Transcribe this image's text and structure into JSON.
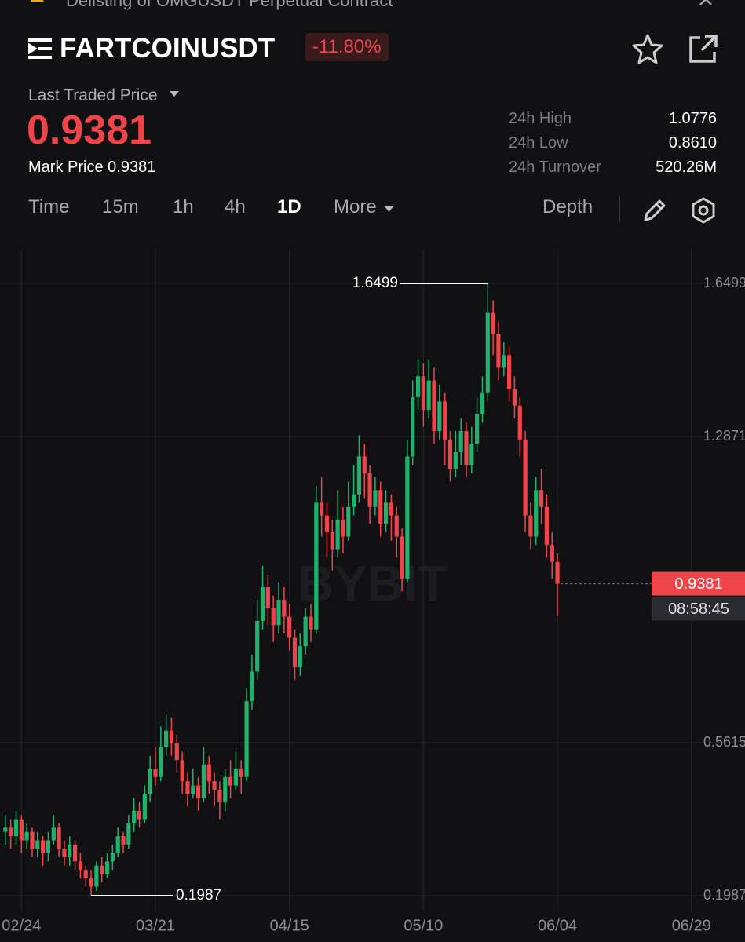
{
  "notice": "Delisting of OMGUSDT Perpetual Contract",
  "header": {
    "symbol": "FARTCOINUSDT",
    "change": "-11.80%",
    "price_label": "Last Traded Price",
    "last_price": "0.9381",
    "mark_price_label": "Mark Price",
    "mark_price": "0.9381",
    "stats": [
      {
        "label": "24h High",
        "value": "1.0776"
      },
      {
        "label": "24h Low",
        "value": "0.8610"
      },
      {
        "label": "24h Turnover",
        "value": "520.26M"
      }
    ]
  },
  "tabs": [
    "Time",
    "15m",
    "1h",
    "4h",
    "1D",
    "More",
    "Depth"
  ],
  "chart_data": {
    "type": "candlestick",
    "watermark": "BYBIT",
    "countdown": "08:58:45",
    "up_color": "#20b26c",
    "down_color": "#ef454a",
    "grid": true,
    "xlim": [
      "02/20",
      "07/09"
    ],
    "xticks": [
      "02/24",
      "03/21",
      "04/15",
      "05/10",
      "06/04",
      "06/29"
    ],
    "ylim": [
      0.1634,
      1.7299
    ],
    "yticks": [
      1.6499,
      1.2871,
      0.5615,
      0.1987
    ],
    "x": [
      "02/21",
      "02/22",
      "02/23",
      "02/24",
      "02/25",
      "02/26",
      "02/27",
      "02/28",
      "03/01",
      "03/02",
      "03/03",
      "03/04",
      "03/05",
      "03/06",
      "03/07",
      "03/08",
      "03/09",
      "03/10",
      "03/11",
      "03/12",
      "03/13",
      "03/14",
      "03/15",
      "03/16",
      "03/17",
      "03/18",
      "03/19",
      "03/20",
      "03/21",
      "03/22",
      "03/23",
      "03/24",
      "03/25",
      "03/26",
      "03/27",
      "03/28",
      "03/29",
      "03/30",
      "03/31",
      "04/01",
      "04/02",
      "04/03",
      "04/04",
      "04/05",
      "04/06",
      "04/07",
      "04/08",
      "04/09",
      "04/10",
      "04/11",
      "04/12",
      "04/13",
      "04/14",
      "04/15",
      "04/16",
      "04/17",
      "04/18",
      "04/19",
      "04/20",
      "04/21",
      "04/22",
      "04/23",
      "04/24",
      "04/25",
      "04/26",
      "04/27",
      "04/28",
      "04/29",
      "04/30",
      "05/01",
      "05/02",
      "05/03",
      "05/04",
      "05/05",
      "05/06",
      "05/07",
      "05/08",
      "05/09",
      "05/10",
      "05/11",
      "05/12",
      "05/13",
      "05/14",
      "05/15",
      "05/16",
      "05/17",
      "05/18",
      "05/19",
      "05/20",
      "05/21",
      "05/22",
      "05/23",
      "05/24",
      "05/25",
      "05/26",
      "05/27",
      "05/28",
      "05/29",
      "05/30",
      "05/31",
      "06/01",
      "06/02",
      "06/03",
      "06/04"
    ],
    "ohlc": [
      [
        0.35,
        0.39,
        0.32,
        0.36
      ],
      [
        0.36,
        0.38,
        0.31,
        0.34
      ],
      [
        0.34,
        0.4,
        0.32,
        0.38
      ],
      [
        0.38,
        0.39,
        0.3,
        0.33
      ],
      [
        0.33,
        0.37,
        0.31,
        0.35
      ],
      [
        0.35,
        0.36,
        0.29,
        0.31
      ],
      [
        0.31,
        0.35,
        0.29,
        0.33
      ],
      [
        0.33,
        0.34,
        0.27,
        0.3
      ],
      [
        0.3,
        0.35,
        0.28,
        0.33
      ],
      [
        0.33,
        0.39,
        0.32,
        0.36
      ],
      [
        0.36,
        0.37,
        0.29,
        0.31
      ],
      [
        0.31,
        0.33,
        0.27,
        0.29
      ],
      [
        0.29,
        0.34,
        0.27,
        0.32
      ],
      [
        0.32,
        0.33,
        0.26,
        0.28
      ],
      [
        0.28,
        0.3,
        0.24,
        0.26
      ],
      [
        0.26,
        0.27,
        0.22,
        0.24
      ],
      [
        0.24,
        0.26,
        0.1987,
        0.22
      ],
      [
        0.22,
        0.28,
        0.21,
        0.27
      ],
      [
        0.27,
        0.29,
        0.23,
        0.25
      ],
      [
        0.25,
        0.3,
        0.24,
        0.28
      ],
      [
        0.28,
        0.32,
        0.26,
        0.3
      ],
      [
        0.3,
        0.36,
        0.29,
        0.34
      ],
      [
        0.34,
        0.35,
        0.3,
        0.32
      ],
      [
        0.32,
        0.39,
        0.31,
        0.37
      ],
      [
        0.37,
        0.43,
        0.35,
        0.4
      ],
      [
        0.4,
        0.42,
        0.36,
        0.38
      ],
      [
        0.38,
        0.46,
        0.37,
        0.44
      ],
      [
        0.44,
        0.53,
        0.42,
        0.5
      ],
      [
        0.5,
        0.55,
        0.46,
        0.48
      ],
      [
        0.48,
        0.6,
        0.47,
        0.55
      ],
      [
        0.55,
        0.63,
        0.53,
        0.59
      ],
      [
        0.59,
        0.62,
        0.53,
        0.56
      ],
      [
        0.56,
        0.58,
        0.49,
        0.52
      ],
      [
        0.52,
        0.54,
        0.44,
        0.47
      ],
      [
        0.47,
        0.49,
        0.41,
        0.44
      ],
      [
        0.44,
        0.5,
        0.43,
        0.46
      ],
      [
        0.46,
        0.48,
        0.4,
        0.43
      ],
      [
        0.43,
        0.55,
        0.42,
        0.51
      ],
      [
        0.51,
        0.53,
        0.44,
        0.47
      ],
      [
        0.47,
        0.49,
        0.41,
        0.45
      ],
      [
        0.45,
        0.47,
        0.38,
        0.42
      ],
      [
        0.42,
        0.5,
        0.4,
        0.48
      ],
      [
        0.48,
        0.52,
        0.43,
        0.46
      ],
      [
        0.46,
        0.54,
        0.45,
        0.5
      ],
      [
        0.5,
        0.52,
        0.44,
        0.48
      ],
      [
        0.48,
        0.69,
        0.47,
        0.66
      ],
      [
        0.66,
        0.77,
        0.64,
        0.73
      ],
      [
        0.73,
        0.9,
        0.71,
        0.85
      ],
      [
        0.85,
        0.98,
        0.83,
        0.93
      ],
      [
        0.93,
        0.96,
        0.84,
        0.88
      ],
      [
        0.88,
        0.91,
        0.8,
        0.84
      ],
      [
        0.84,
        0.94,
        0.82,
        0.9
      ],
      [
        0.9,
        0.93,
        0.82,
        0.86
      ],
      [
        0.86,
        0.89,
        0.78,
        0.81
      ],
      [
        0.81,
        0.83,
        0.71,
        0.74
      ],
      [
        0.74,
        0.82,
        0.72,
        0.79
      ],
      [
        0.79,
        0.88,
        0.77,
        0.86
      ],
      [
        0.86,
        0.89,
        0.8,
        0.83
      ],
      [
        0.83,
        1.17,
        0.82,
        1.13
      ],
      [
        1.13,
        1.19,
        1.05,
        1.1
      ],
      [
        1.1,
        1.13,
        1.0,
        1.06
      ],
      [
        1.06,
        1.09,
        0.97,
        1.02
      ],
      [
        1.02,
        1.16,
        1.0,
        1.09
      ],
      [
        1.09,
        1.12,
        1.01,
        1.05
      ],
      [
        1.05,
        1.18,
        1.04,
        1.12
      ],
      [
        1.12,
        1.22,
        1.1,
        1.15
      ],
      [
        1.15,
        1.29,
        1.13,
        1.24
      ],
      [
        1.24,
        1.27,
        1.14,
        1.2
      ],
      [
        1.2,
        1.22,
        1.08,
        1.12
      ],
      [
        1.12,
        1.19,
        1.1,
        1.16
      ],
      [
        1.16,
        1.18,
        1.05,
        1.08
      ],
      [
        1.08,
        1.16,
        1.06,
        1.13
      ],
      [
        1.13,
        1.15,
        1.04,
        1.1
      ],
      [
        1.1,
        1.12,
        1.0,
        1.05
      ],
      [
        1.05,
        1.07,
        0.92,
        0.95
      ],
      [
        0.95,
        1.28,
        0.94,
        1.24
      ],
      [
        1.24,
        1.42,
        1.22,
        1.38
      ],
      [
        1.38,
        1.47,
        1.35,
        1.43
      ],
      [
        1.43,
        1.46,
        1.31,
        1.35
      ],
      [
        1.35,
        1.47,
        1.33,
        1.42
      ],
      [
        1.42,
        1.45,
        1.27,
        1.3
      ],
      [
        1.3,
        1.41,
        1.28,
        1.37
      ],
      [
        1.37,
        1.39,
        1.22,
        1.28
      ],
      [
        1.28,
        1.3,
        1.18,
        1.21
      ],
      [
        1.21,
        1.3,
        1.19,
        1.25
      ],
      [
        1.25,
        1.33,
        1.22,
        1.3
      ],
      [
        1.3,
        1.32,
        1.19,
        1.22
      ],
      [
        1.22,
        1.31,
        1.2,
        1.27
      ],
      [
        1.27,
        1.38,
        1.25,
        1.34
      ],
      [
        1.34,
        1.43,
        1.32,
        1.39
      ],
      [
        1.39,
        1.6499,
        1.37,
        1.58
      ],
      [
        1.58,
        1.61,
        1.48,
        1.53
      ],
      [
        1.53,
        1.56,
        1.42,
        1.45
      ],
      [
        1.45,
        1.51,
        1.43,
        1.48
      ],
      [
        1.48,
        1.5,
        1.37,
        1.4
      ],
      [
        1.4,
        1.43,
        1.33,
        1.36
      ],
      [
        1.36,
        1.38,
        1.24,
        1.28
      ],
      [
        1.28,
        1.3,
        1.06,
        1.1
      ],
      [
        1.1,
        1.13,
        1.02,
        1.05
      ],
      [
        1.05,
        1.19,
        1.03,
        1.16
      ],
      [
        1.16,
        1.21,
        1.08,
        1.12
      ],
      [
        1.12,
        1.15,
        1.0,
        1.03
      ],
      [
        1.03,
        1.06,
        0.95,
        0.99
      ],
      [
        0.99,
        1.01,
        0.861,
        0.9381
      ]
    ]
  }
}
